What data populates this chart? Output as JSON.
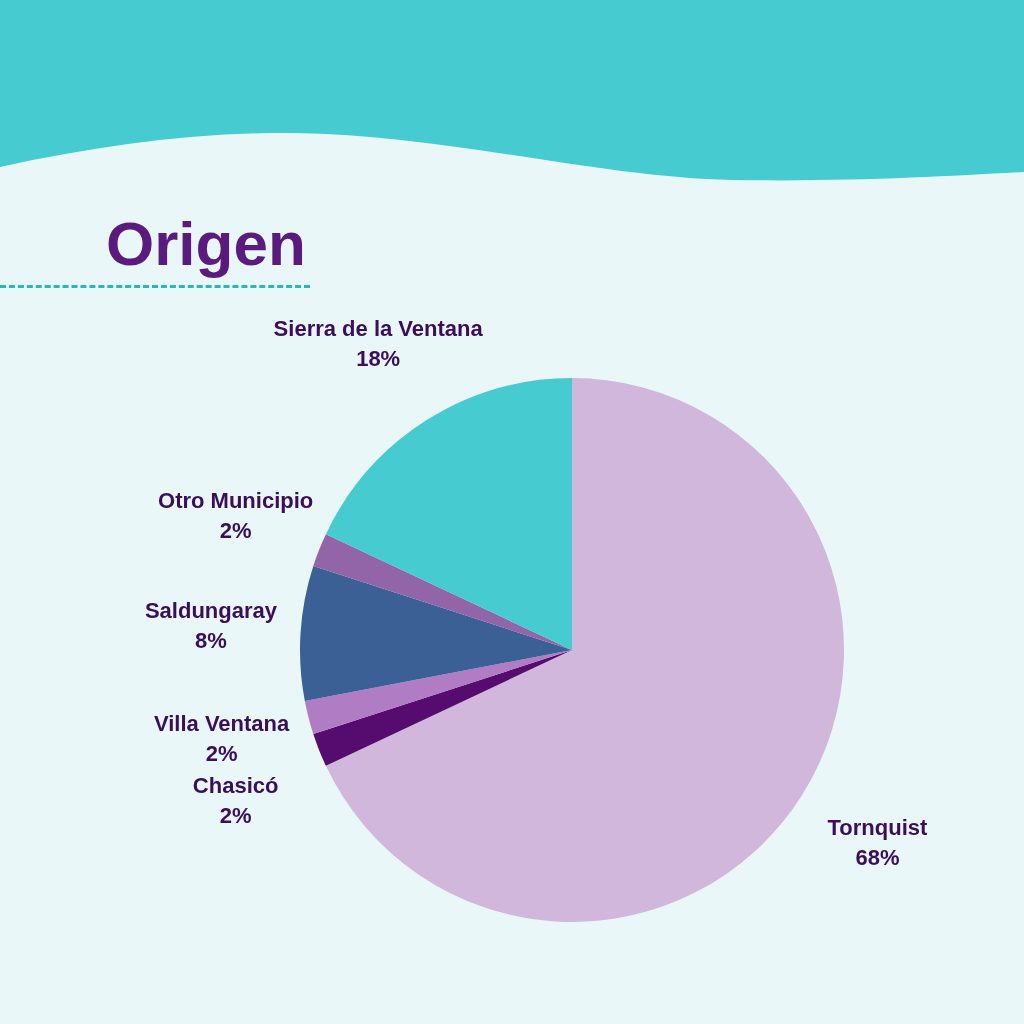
{
  "chart_data": {
    "type": "pie",
    "title": "Origen",
    "categories": [
      "Tornquist",
      "Chasicó",
      "Villa Ventana",
      "Saldungaray",
      "Otro Municipio",
      "Sierra de la Ventana"
    ],
    "values": [
      68,
      2,
      2,
      8,
      2,
      18
    ],
    "value_labels": [
      "68%",
      "2%",
      "2%",
      "8%",
      "2%",
      "18%"
    ],
    "colors": [
      "#d0b7db",
      "#560c6e",
      "#b07cc4",
      "#3b6095",
      "#9264a8",
      "#45cbd0"
    ]
  }
}
